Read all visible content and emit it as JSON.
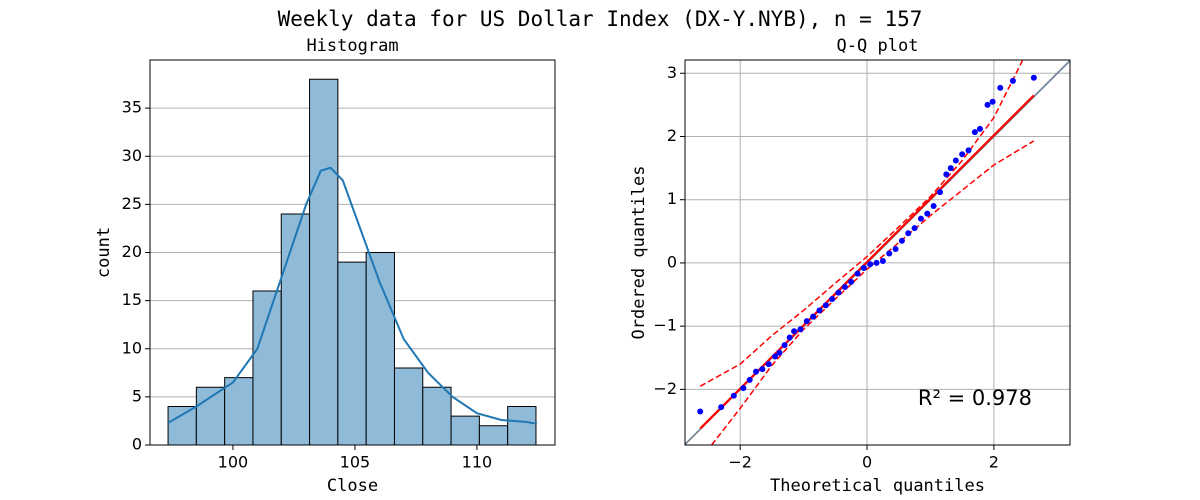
{
  "title": "Weekly data for US Dollar Index (DX-Y.NYB), n = 157",
  "chart_data": [
    {
      "type": "histogram",
      "title": "Histogram",
      "xlabel": "Close",
      "ylabel": "count",
      "bins": [
        97.34,
        98.5,
        99.66,
        100.82,
        101.98,
        103.14,
        104.3,
        105.46,
        106.62,
        107.78,
        108.94,
        110.1,
        111.26,
        112.42
      ],
      "values": [
        4,
        6,
        7,
        16,
        24,
        38,
        19,
        20,
        8,
        6,
        3,
        2,
        4
      ],
      "color": "#8fbbd9",
      "edgecolor": "#000000",
      "xlim": [
        96.6,
        113.2
      ],
      "ylim": [
        0,
        40
      ],
      "xticks": [
        100,
        105,
        110
      ],
      "yticks": [
        0,
        5,
        10,
        15,
        20,
        25,
        30,
        35
      ],
      "grid": "y",
      "kde": {
        "color": "#1f77b4",
        "x": [
          97.34,
          98.5,
          100,
          101,
          102,
          103,
          103.6,
          104,
          104.5,
          105,
          106,
          107,
          108,
          109,
          110,
          111,
          112,
          112.46
        ],
        "values": [
          2.3,
          4.0,
          6.5,
          10,
          17.5,
          25,
          28.5,
          28.8,
          27.5,
          24,
          17,
          11,
          7.5,
          5,
          3.3,
          2.6,
          2.4,
          2.2
        ]
      }
    },
    {
      "type": "qq",
      "title": "Q-Q plot",
      "xlabel": "Theoretical quantiles",
      "ylabel": "Ordered quantiles",
      "xlim": [
        -2.87,
        3.2
      ],
      "ylim": [
        -2.88,
        3.21
      ],
      "xticks": [
        {
          "value": -2,
          "label": "−2"
        },
        0,
        2
      ],
      "yticks": [
        {
          "value": -2,
          "label": "−2"
        },
        {
          "value": -1,
          "label": "−1"
        },
        0,
        1,
        2,
        3
      ],
      "grid": "both",
      "annotation": "R² = 0.978",
      "reference": {
        "color": "#778899",
        "x": [
          -2.87,
          3.2
        ],
        "values": [
          -2.87,
          3.2
        ]
      },
      "upper_band": {
        "color": "#ff0000",
        "x": [
          -2.63,
          -2,
          -1.5,
          -1,
          -0.5,
          0,
          0.5,
          1,
          1.5,
          2,
          2.45
        ],
        "values": [
          -1.95,
          -1.6,
          -1.15,
          -0.75,
          -0.32,
          0.1,
          0.57,
          1.05,
          1.62,
          2.3,
          3.2
        ]
      },
      "lower_band": {
        "color": "#ff0000",
        "x": [
          -2.45,
          -2,
          -1.5,
          -1,
          -0.5,
          0,
          0.5,
          1,
          1.5,
          2,
          2.63
        ],
        "values": [
          -2.88,
          -2.3,
          -1.62,
          -1.05,
          -0.57,
          -0.1,
          0.32,
          0.75,
          1.15,
          1.55,
          1.93
        ]
      },
      "fit": {
        "color": "#ff0000",
        "x": [
          -2.63,
          2.63
        ],
        "values": [
          -2.62,
          2.65
        ]
      },
      "points": {
        "color": "#0000ff",
        "x": [
          -2.63,
          -2.3,
          -2.1,
          -1.95,
          -1.85,
          -1.75,
          -1.65,
          -1.55,
          -1.45,
          -1.38,
          -1.3,
          -1.22,
          -1.15,
          -1.05,
          -0.95,
          -0.85,
          -0.75,
          -0.65,
          -0.55,
          -0.45,
          -0.35,
          -0.25,
          -0.15,
          -0.05,
          0.05,
          0.15,
          0.25,
          0.35,
          0.45,
          0.55,
          0.65,
          0.75,
          0.85,
          0.95,
          1.05,
          1.15,
          1.25,
          1.32,
          1.4,
          1.5,
          1.6,
          1.7,
          1.78,
          1.9,
          1.98,
          2.1,
          2.3,
          2.63
        ],
        "values": [
          -2.35,
          -2.28,
          -2.1,
          -1.98,
          -1.85,
          -1.72,
          -1.68,
          -1.6,
          -1.48,
          -1.42,
          -1.3,
          -1.18,
          -1.08,
          -1.05,
          -0.92,
          -0.85,
          -0.75,
          -0.67,
          -0.57,
          -0.47,
          -0.38,
          -0.3,
          -0.17,
          -0.08,
          -0.02,
          0.0,
          0.03,
          0.15,
          0.22,
          0.35,
          0.47,
          0.55,
          0.7,
          0.78,
          0.9,
          1.12,
          1.4,
          1.5,
          1.62,
          1.72,
          1.78,
          2.07,
          2.12,
          2.5,
          2.55,
          2.77,
          2.88,
          2.93
        ]
      }
    }
  ]
}
